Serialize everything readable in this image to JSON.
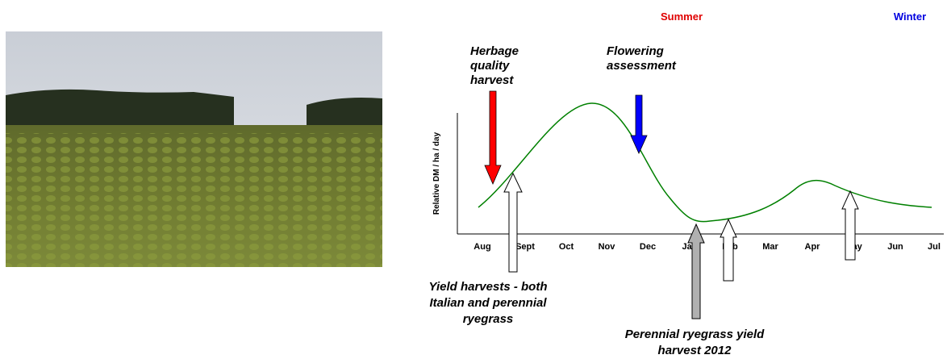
{
  "seasons": [
    "Summer",
    "Winter"
  ],
  "y_axis_label": "Relative DM / ha / day",
  "months": [
    "Aug",
    "Sept",
    "Oct",
    "Nov",
    "Dec",
    "Jan",
    "Feb",
    "Mar",
    "Apr",
    "May",
    "Jun",
    "Jul"
  ],
  "annotations": {
    "herbage": [
      "Herbage",
      "quality",
      "harvest"
    ],
    "flowering": [
      "Flowering",
      "assessment"
    ],
    "yield_both": [
      "Yield harvests - both",
      "Italian and perennial",
      "ryegrass"
    ],
    "perennial": [
      "Perennial ryegrass yield",
      "harvest 2012"
    ]
  }
}
